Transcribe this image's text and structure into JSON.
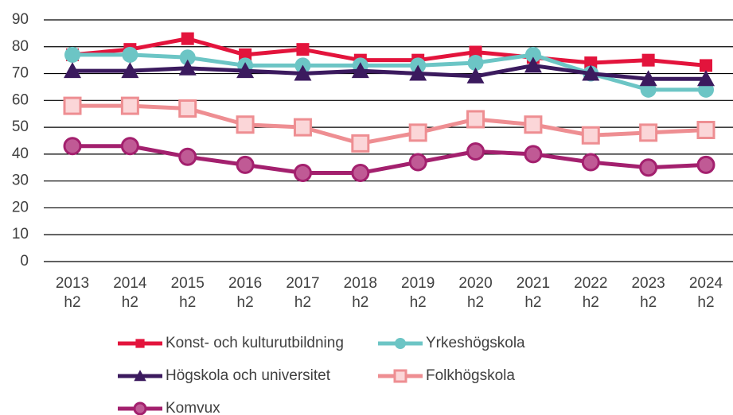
{
  "chart_data": {
    "type": "line",
    "categories": [
      "2013\nh2",
      "2014\nh2",
      "2015\nh2",
      "2016\nh2",
      "2017\nh2",
      "2018\nh2",
      "2019\nh2",
      "2020\nh2",
      "2021\nh2",
      "2022\nh2",
      "2023\nh2",
      "2024\nh2"
    ],
    "series": [
      {
        "name": "Konst- och kulturutbildning",
        "color": "#e3143c",
        "marker": "square",
        "values": [
          77,
          79,
          83,
          77,
          79,
          75,
          75,
          78,
          76,
          74,
          75,
          73
        ]
      },
      {
        "name": "Yrkeshögskola",
        "color": "#6cc5c5",
        "marker": "circle",
        "values": [
          77,
          77,
          76,
          73,
          73,
          73,
          73,
          74,
          77,
          70,
          64,
          64
        ]
      },
      {
        "name": "Högskola och universitet",
        "color": "#3b1a5e",
        "marker": "triangle",
        "values": [
          71,
          71,
          72,
          71,
          70,
          71,
          70,
          69,
          73,
          70,
          68,
          68
        ]
      },
      {
        "name": "Folkhögskola",
        "color": "#ee8e92",
        "marker": "open-square",
        "values": [
          58,
          58,
          57,
          51,
          50,
          44,
          48,
          53,
          51,
          47,
          48,
          49
        ]
      },
      {
        "name": "Komvux",
        "color": "#a3206e",
        "marker": "open-circle",
        "values": [
          43,
          43,
          39,
          36,
          33,
          33,
          37,
          41,
          40,
          37,
          35,
          36
        ]
      }
    ],
    "ylim": [
      0,
      90
    ],
    "yticks": [
      0,
      10,
      20,
      30,
      40,
      50,
      60,
      70,
      80,
      90
    ],
    "grid": true,
    "legend": "bottom"
  }
}
